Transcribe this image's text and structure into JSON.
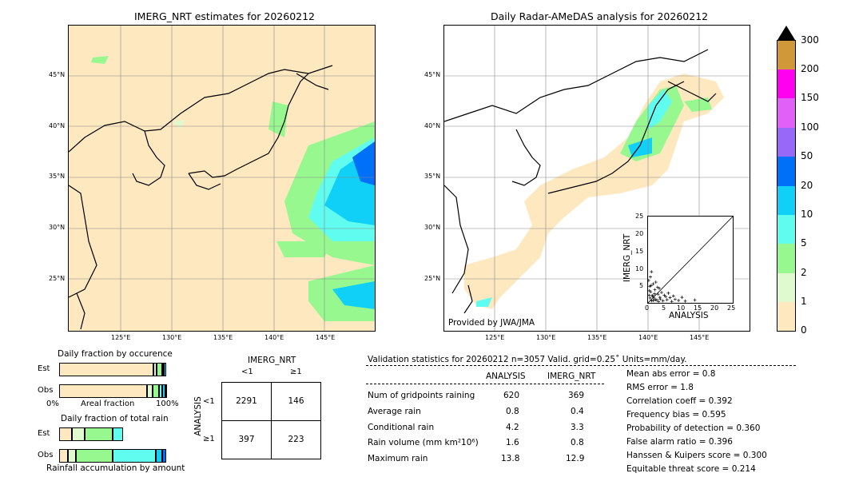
{
  "left_map": {
    "title": "IMERG_NRT estimates for 20260212",
    "lat_ticks": [
      "45°N",
      "40°N",
      "35°N",
      "30°N",
      "25°N"
    ],
    "lon_ticks": [
      "125°E",
      "130°E",
      "135°E",
      "140°E",
      "145°E"
    ]
  },
  "right_map": {
    "title": "Daily Radar-AMeDAS analysis for 20260212",
    "lat_ticks": [
      "45°N",
      "40°N",
      "35°N",
      "30°N",
      "25°N"
    ],
    "lon_ticks": [
      "125°E",
      "130°E",
      "135°E",
      "140°E",
      "145°E"
    ],
    "credit": "Provided by JWA/JMA"
  },
  "colorbar": {
    "labels": [
      "0",
      "1",
      "2",
      "5",
      "10",
      "20",
      "50",
      "100",
      "150",
      "200",
      "300"
    ],
    "colors": [
      "#fde8c0",
      "#e0fad0",
      "#98f890",
      "#60fcf0",
      "#10d0f8",
      "#0070f8",
      "#9868f8",
      "#e060f8",
      "#ff00f0",
      "#d09838",
      "#000000"
    ]
  },
  "inset": {
    "xlabel": "ANALYSIS",
    "ylabel": "IMERG_NRT",
    "ticks": [
      "0",
      "5",
      "10",
      "15",
      "20",
      "25"
    ]
  },
  "fraction_occurrence": {
    "title": "Daily fraction by occurence",
    "row_labels": [
      "Est",
      "Obs"
    ],
    "axis_left": "0%",
    "axis_mid": "Areal fraction",
    "axis_right": "100%"
  },
  "fraction_total": {
    "title": "Daily fraction of total rain",
    "row_labels": [
      "Est",
      "Obs"
    ],
    "footer": "Rainfall accumulation by amount"
  },
  "contingency": {
    "col_header": "IMERG_NRT",
    "col_labels": [
      "<1",
      "≥1"
    ],
    "row_header": "ANALYSIS",
    "row_labels": [
      "<1",
      "≥1"
    ],
    "cells": [
      [
        "2291",
        "146"
      ],
      [
        "397",
        "223"
      ]
    ]
  },
  "validation": {
    "header": "Validation statistics for 20260212  n=3057 Valid. grid=0.25˚ Units=mm/day.",
    "col_headers": [
      "ANALYSIS",
      "IMERG_NRT"
    ],
    "rows": [
      {
        "label": "Num of gridpoints raining",
        "analysis": "620",
        "imerg": "369"
      },
      {
        "label": "Average rain",
        "analysis": "0.8",
        "imerg": "0.4"
      },
      {
        "label": "Conditional rain",
        "analysis": "4.2",
        "imerg": "3.3"
      },
      {
        "label": "Rain volume (mm km²10⁶)",
        "analysis": "1.6",
        "imerg": "0.8"
      },
      {
        "label": "Maximum rain",
        "analysis": "13.8",
        "imerg": "12.9"
      }
    ],
    "scores": [
      "Mean abs error =    0.8",
      "RMS error =    1.8",
      "Correlation coeff =  0.392",
      "Frequency bias =  0.595",
      "Probability of detection =  0.360",
      "False alarm ratio =  0.396",
      "Hanssen & Kuipers score =  0.300",
      "Equitable threat score =  0.214"
    ]
  },
  "chart_data": [
    {
      "type": "bar",
      "title": "Daily fraction by occurence",
      "categories": [
        "Est",
        "Obs"
      ],
      "series": [
        {
          "name": "0",
          "values": [
            0.88,
            0.82
          ]
        },
        {
          "name": "1",
          "values": [
            0.03,
            0.05
          ]
        },
        {
          "name": "2",
          "values": [
            0.05,
            0.06
          ]
        },
        {
          "name": "5",
          "values": [
            0.02,
            0.03
          ]
        },
        {
          "name": "10",
          "values": [
            0.02,
            0.03
          ]
        },
        {
          "name": "20",
          "values": [
            0.0,
            0.01
          ]
        }
      ]
    },
    {
      "type": "bar",
      "title": "Daily fraction of total rain",
      "categories": [
        "Est",
        "Obs"
      ],
      "series": [
        {
          "name": "0",
          "values": [
            0.12,
            0.08
          ]
        },
        {
          "name": "1",
          "values": [
            0.12,
            0.08
          ]
        },
        {
          "name": "2",
          "values": [
            0.26,
            0.34
          ]
        },
        {
          "name": "5",
          "values": [
            0.1,
            0.4
          ]
        },
        {
          "name": "10",
          "values": [
            0.0,
            0.06
          ]
        },
        {
          "name": "20",
          "values": [
            0.0,
            0.04
          ]
        }
      ]
    },
    {
      "type": "scatter",
      "xlabel": "ANALYSIS",
      "ylabel": "IMERG_NRT",
      "xlim": [
        0,
        25
      ],
      "ylim": [
        0,
        25
      ],
      "x": [
        0.2,
        0.5,
        0.8,
        1.0,
        1.2,
        1.5,
        1.8,
        2.0,
        2.3,
        2.6,
        3.0,
        3.3,
        3.6,
        4.0,
        4.4,
        4.8,
        5.2,
        5.6,
        6.0,
        6.5,
        7.0,
        7.5,
        8.0,
        9.0,
        10.0,
        11.0,
        13.8,
        0.3,
        0.6,
        1.1,
        1.4,
        2.2,
        2.8,
        3.5,
        0.4,
        0.9,
        1.6,
        0.7,
        1.9,
        3.1
      ],
      "y": [
        6.5,
        4.8,
        3.2,
        9.0,
        2.1,
        5.5,
        1.4,
        3.8,
        6.0,
        0.8,
        2.5,
        4.2,
        1.1,
        3.0,
        0.6,
        2.2,
        1.8,
        0.9,
        2.8,
        1.5,
        0.4,
        2.0,
        1.0,
        0.7,
        1.6,
        0.5,
        0.8,
        2.2,
        1.4,
        0.6,
        1.9,
        0.9,
        4.5,
        1.6,
        3.5,
        5.0,
        0.7,
        7.5,
        2.6,
        0.3
      ]
    }
  ]
}
